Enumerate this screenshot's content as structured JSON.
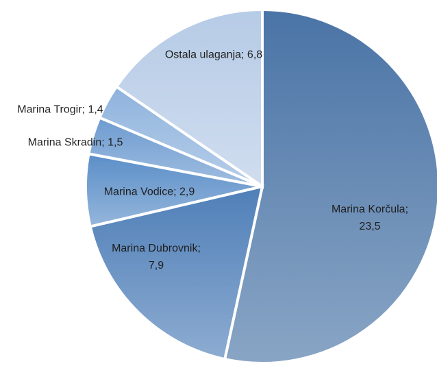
{
  "chart_data": {
    "type": "pie",
    "categories": [
      "Marina Korčula",
      "Marina Dubrovnik",
      "Marina Vodice",
      "Marina Skradin",
      "Marina Trogir",
      "Ostala ulaganja"
    ],
    "values": [
      23.5,
      7.9,
      2.9,
      1.5,
      1.4,
      6.8
    ],
    "value_labels": [
      "23,5",
      "7,9",
      "2,9",
      "1,5",
      "1,4",
      "6,8"
    ],
    "label_separator": ";",
    "colors": [
      "#4a74a6",
      "#4f7fb8",
      "#5b8ec8",
      "#6d9bd0",
      "#8fb3dd",
      "#b6cbe6"
    ]
  }
}
